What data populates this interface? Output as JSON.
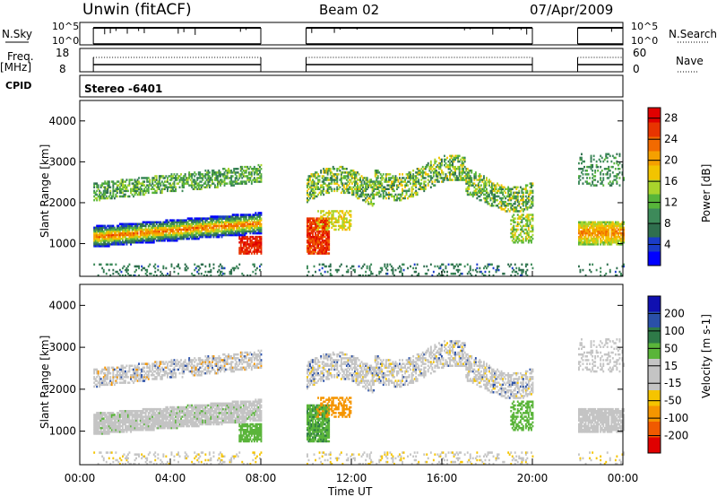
{
  "header": {
    "station": "Unwin (fitACF)",
    "beam": "Beam 02",
    "date": "07/Apr/2009"
  },
  "left_labels": {
    "nsky": "N.Sky",
    "freq": "Freq.",
    "mhz": "[MHz]",
    "cpid": "CPID"
  },
  "right_labels": {
    "nsearch": "N.Search",
    "nave": "Nave"
  },
  "noise_axis": {
    "left_ticks": [
      "10^5",
      "10^0"
    ],
    "right_ticks": [
      "10^5",
      "10^0"
    ]
  },
  "freq_axis": {
    "left_ticks": [
      "18",
      "8"
    ],
    "right_ticks": [
      "60",
      "0"
    ]
  },
  "cpid_text": "Stereo  -6401",
  "colors": {
    "power": [
      "#0000ff",
      "#1a3cc8",
      "#2f6f4e",
      "#3d8a5a",
      "#57b53a",
      "#a9d42c",
      "#f2c400",
      "#f5a000",
      "#f26a00",
      "#e83400",
      "#e00000"
    ],
    "velocity": [
      "#1010b0",
      "#2a50a8",
      "#2e7a48",
      "#5ab53a",
      "#c4c4c4",
      "#c4c4c4",
      "#f5c400",
      "#f59500",
      "#f05a00",
      "#e00000"
    ]
  },
  "chart_data": [
    {
      "type": "heatmap",
      "name": "power",
      "ylabel": "Slant Range [km]",
      "ylim": [
        200,
        4500
      ],
      "yticks": [
        1000,
        2000,
        3000,
        4000
      ],
      "colorbar": {
        "label": "Power [dB]",
        "ticks": [
          "4",
          "8",
          "12",
          "16",
          "20",
          "24",
          "28"
        ],
        "range": [
          0,
          30
        ]
      },
      "x_hours_range": [
        0,
        24
      ],
      "data_gaps_hours": [
        [
          8.0,
          10.0
        ],
        [
          20.0,
          22.0
        ]
      ],
      "echo_bands": [
        {
          "t": [
            0.6,
            8.0
          ],
          "range_km": [
            1000,
            1600
          ],
          "dominant": "red-orange"
        },
        {
          "t": [
            0.6,
            8.0
          ],
          "range_km": [
            2000,
            2800
          ],
          "dominant": "blue-green"
        },
        {
          "t": [
            10.0,
            20.0
          ],
          "range_km": [
            1800,
            3000
          ],
          "dominant": "blue-green"
        },
        {
          "t": [
            10.0,
            11.0
          ],
          "range_km": [
            700,
            1600
          ],
          "dominant": "red"
        },
        {
          "t": [
            22.0,
            24.0
          ],
          "range_km": [
            900,
            1600
          ],
          "dominant": "orange"
        }
      ]
    },
    {
      "type": "heatmap",
      "name": "velocity",
      "ylabel": "Slant Range [km]",
      "xlabel": "Time UT",
      "ylim": [
        200,
        4500
      ],
      "yticks": [
        1000,
        2000,
        3000,
        4000
      ],
      "xticks": [
        "00:00",
        "04:00",
        "08:00",
        "12:00",
        "16:00",
        "20:00",
        "00:00"
      ],
      "colorbar": {
        "label": "Velocity [m s-1]",
        "ticks": [
          "200",
          "100",
          "50",
          "15",
          "-15",
          "-50",
          "-100",
          "-200"
        ]
      },
      "data_gaps_hours": [
        [
          8.0,
          10.0
        ],
        [
          20.0,
          22.0
        ]
      ],
      "echo_bands": [
        {
          "t": [
            0.6,
            8.0
          ],
          "range_km": [
            1000,
            1600
          ],
          "dominant": "grey"
        },
        {
          "t": [
            7.0,
            8.0
          ],
          "range_km": [
            700,
            1100
          ],
          "dominant": "green"
        },
        {
          "t": [
            10.0,
            11.0
          ],
          "range_km": [
            700,
            1600
          ],
          "dominant": "green"
        },
        {
          "t": [
            10.5,
            12.0
          ],
          "range_km": [
            1300,
            1800
          ],
          "dominant": "orange"
        },
        {
          "t": [
            10.0,
            20.0
          ],
          "range_km": [
            1800,
            3000
          ],
          "dominant": "grey"
        },
        {
          "t": [
            22.0,
            24.0
          ],
          "range_km": [
            900,
            1600
          ],
          "dominant": "grey"
        }
      ]
    }
  ]
}
